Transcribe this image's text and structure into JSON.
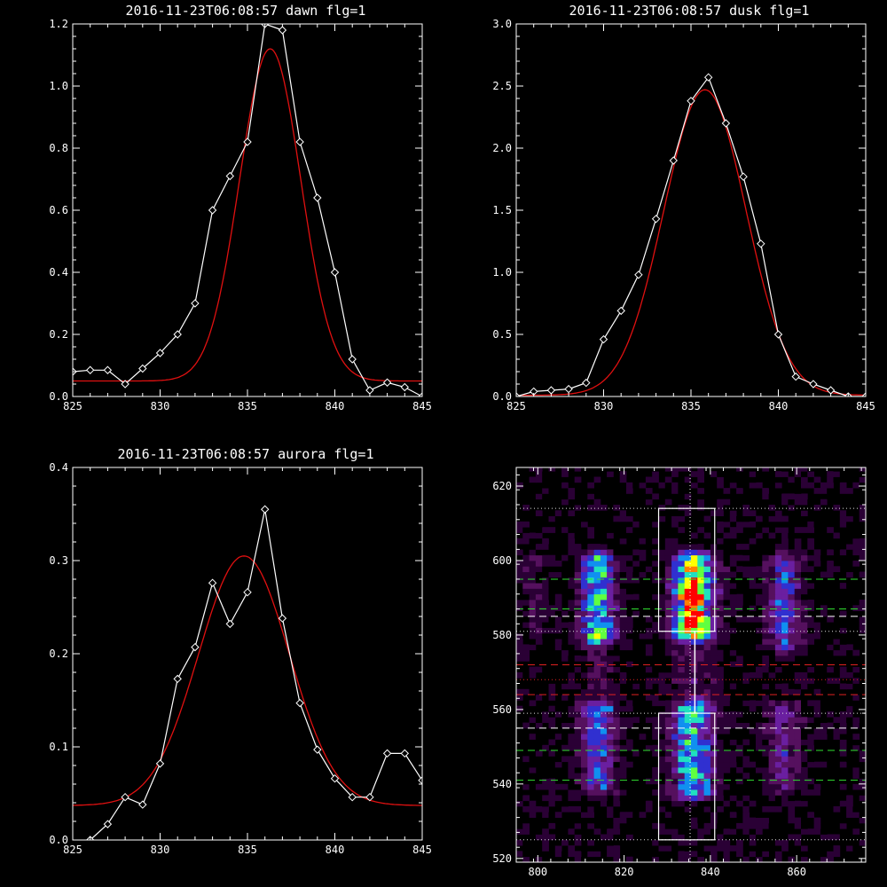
{
  "chart_data": [
    {
      "type": "line",
      "title": "2016-11-23T06:08:57 dawn flg=1",
      "xlim": [
        825,
        845
      ],
      "ylim": [
        0,
        1.2
      ],
      "xticks": [
        "825",
        "830",
        "835",
        "840",
        "845"
      ],
      "xtick_values": [
        825,
        830,
        835,
        840,
        845
      ],
      "yticks": [
        "0.0",
        "0.2",
        "0.4",
        "0.6",
        "0.8",
        "1.0",
        "1.2"
      ],
      "ytick_values": [
        0,
        0.2,
        0.4,
        0.6,
        0.8,
        1.0,
        1.2
      ],
      "series": [
        {
          "kind": "data",
          "color": "#ffffff",
          "marker": "diamond",
          "x": [
            825,
            826,
            827,
            828,
            829,
            830,
            831,
            832,
            833,
            834,
            835,
            836,
            837,
            838,
            839,
            840,
            841,
            842,
            843,
            844,
            845
          ],
          "y": [
            0.08,
            0.085,
            0.085,
            0.04,
            0.09,
            0.14,
            0.2,
            0.3,
            0.6,
            0.71,
            0.82,
            1.2,
            1.18,
            0.82,
            0.64,
            0.4,
            0.12,
            0.02,
            0.045,
            0.03,
            0.0
          ]
        },
        {
          "kind": "fit",
          "color": "#e01010",
          "gaussian": {
            "amp": 1.07,
            "center": 836.3,
            "sigma": 1.75,
            "offset": 0.05
          }
        }
      ]
    },
    {
      "type": "line",
      "title": "2016-11-23T06:08:57 dusk flg=1",
      "xlim": [
        825,
        845
      ],
      "ylim": [
        0,
        3.0
      ],
      "xticks": [
        "825",
        "830",
        "835",
        "840",
        "845"
      ],
      "xtick_values": [
        825,
        830,
        835,
        840,
        845
      ],
      "yticks": [
        "0.0",
        "0.5",
        "1.0",
        "1.5",
        "2.0",
        "2.5",
        "3.0"
      ],
      "ytick_values": [
        0,
        0.5,
        1.0,
        1.5,
        2.0,
        2.5,
        3.0
      ],
      "series": [
        {
          "kind": "data",
          "color": "#ffffff",
          "marker": "diamond",
          "x": [
            825,
            826,
            827,
            828,
            829,
            830,
            831,
            832,
            833,
            834,
            835,
            836,
            837,
            838,
            839,
            840,
            841,
            842,
            843,
            844,
            845
          ],
          "y": [
            0.0,
            0.04,
            0.05,
            0.06,
            0.11,
            0.46,
            0.69,
            0.98,
            1.43,
            1.9,
            2.38,
            2.57,
            2.2,
            1.77,
            1.23,
            0.5,
            0.16,
            0.1,
            0.05,
            0.0,
            0.0
          ]
        },
        {
          "kind": "fit",
          "color": "#e01010",
          "gaussian": {
            "amp": 2.46,
            "center": 835.8,
            "sigma": 2.35,
            "offset": 0.01
          }
        }
      ]
    },
    {
      "type": "line",
      "title": "2016-11-23T06:08:57 aurora flg=1",
      "xlim": [
        825,
        845
      ],
      "ylim": [
        0,
        0.4
      ],
      "xticks": [
        "825",
        "830",
        "835",
        "840",
        "845"
      ],
      "xtick_values": [
        825,
        830,
        835,
        840,
        845
      ],
      "yticks": [
        "0.0",
        "0.1",
        "0.2",
        "0.3",
        "0.4"
      ],
      "ytick_values": [
        0,
        0.1,
        0.2,
        0.3,
        0.4
      ],
      "series": [
        {
          "kind": "data",
          "color": "#ffffff",
          "marker": "diamond",
          "x": [
            826,
            827,
            828,
            829,
            830,
            831,
            832,
            833,
            834,
            835,
            836,
            837,
            838,
            839,
            840,
            841,
            842,
            843,
            844,
            845
          ],
          "y": [
            0.0,
            0.017,
            0.046,
            0.038,
            0.082,
            0.173,
            0.207,
            0.276,
            0.232,
            0.266,
            0.355,
            0.238,
            0.147,
            0.097,
            0.066,
            0.046,
            0.046,
            0.093,
            0.093,
            0.064
          ]
        },
        {
          "kind": "fit",
          "color": "#e01010",
          "gaussian": {
            "amp": 0.268,
            "center": 834.8,
            "sigma": 2.6,
            "offset": 0.037
          }
        }
      ]
    },
    {
      "type": "heatmap",
      "xlim": [
        795,
        876
      ],
      "ylim": [
        519,
        625
      ],
      "xticks": [
        "800",
        "820",
        "840",
        "860"
      ],
      "xtick_values": [
        800,
        820,
        840,
        860
      ],
      "yticks": [
        "520",
        "540",
        "560",
        "580",
        "600",
        "620"
      ],
      "ytick_values": [
        520,
        540,
        560,
        580,
        600,
        620
      ],
      "colormap": [
        "#000000",
        "#2a0035",
        "#55105e",
        "#6a1fa0",
        "#3030d0",
        "#1090f0",
        "#20e0c0",
        "#60ff40",
        "#ffff00",
        "#ff8000",
        "#ff0000"
      ],
      "emission_columns": [
        {
          "x": 814,
          "width": 5,
          "segments": [
            [
              580,
              600,
              0.62
            ],
            [
              539,
              560,
              0.45
            ],
            [
              560,
              580,
              0.12
            ]
          ]
        },
        {
          "x": 836,
          "width": 6,
          "segments": [
            [
              581,
              600,
              0.92
            ],
            [
              538,
              560,
              0.62
            ],
            [
              560,
              581,
              0.18
            ]
          ]
        },
        {
          "x": 857,
          "width": 5,
          "segments": [
            [
              578,
              600,
              0.38
            ],
            [
              540,
              560,
              0.3
            ]
          ]
        },
        {
          "x": 800,
          "width": 4,
          "segments": [
            [
              580,
              600,
              0.12
            ]
          ]
        }
      ],
      "hot_spots": [
        {
          "x": 836,
          "y": 590
        },
        {
          "x": 836,
          "y": 585
        },
        {
          "x": 835,
          "y": 591
        }
      ],
      "boxes": [
        {
          "x0": 828,
          "x1": 841,
          "y0": 581,
          "y1": 614,
          "color": "#ffffff"
        },
        {
          "x0": 828,
          "x1": 841,
          "y0": 525,
          "y1": 559,
          "color": "#ffffff"
        }
      ],
      "vlines": [
        {
          "x": 835.3,
          "color": "#ffffff",
          "style": "dotted"
        },
        {
          "x": 836.4,
          "color": "#ffffff",
          "style": "solid",
          "y0": 559,
          "y1": 581
        }
      ],
      "hlines": [
        {
          "y": 614,
          "color": "#e0e0e0",
          "style": "dotted"
        },
        {
          "y": 595,
          "color": "#30e030",
          "style": "dashed"
        },
        {
          "y": 587,
          "color": "#30e030",
          "style": "dashed"
        },
        {
          "y": 585,
          "color": "#ffffff",
          "style": "dashed"
        },
        {
          "y": 581,
          "color": "#e0e0e0",
          "style": "dotted"
        },
        {
          "y": 572,
          "color": "#e02020",
          "style": "dashed"
        },
        {
          "y": 568,
          "color": "#e02020",
          "style": "dotted"
        },
        {
          "y": 564,
          "color": "#e02020",
          "style": "dashed"
        },
        {
          "y": 559,
          "color": "#e0e0e0",
          "style": "dotted"
        },
        {
          "y": 555,
          "color": "#ffffff",
          "style": "dashed"
        },
        {
          "y": 549,
          "color": "#30e030",
          "style": "dashed"
        },
        {
          "y": 541,
          "color": "#30e030",
          "style": "dashed"
        },
        {
          "y": 525,
          "color": "#e0e0e0",
          "style": "dotted"
        }
      ]
    }
  ]
}
